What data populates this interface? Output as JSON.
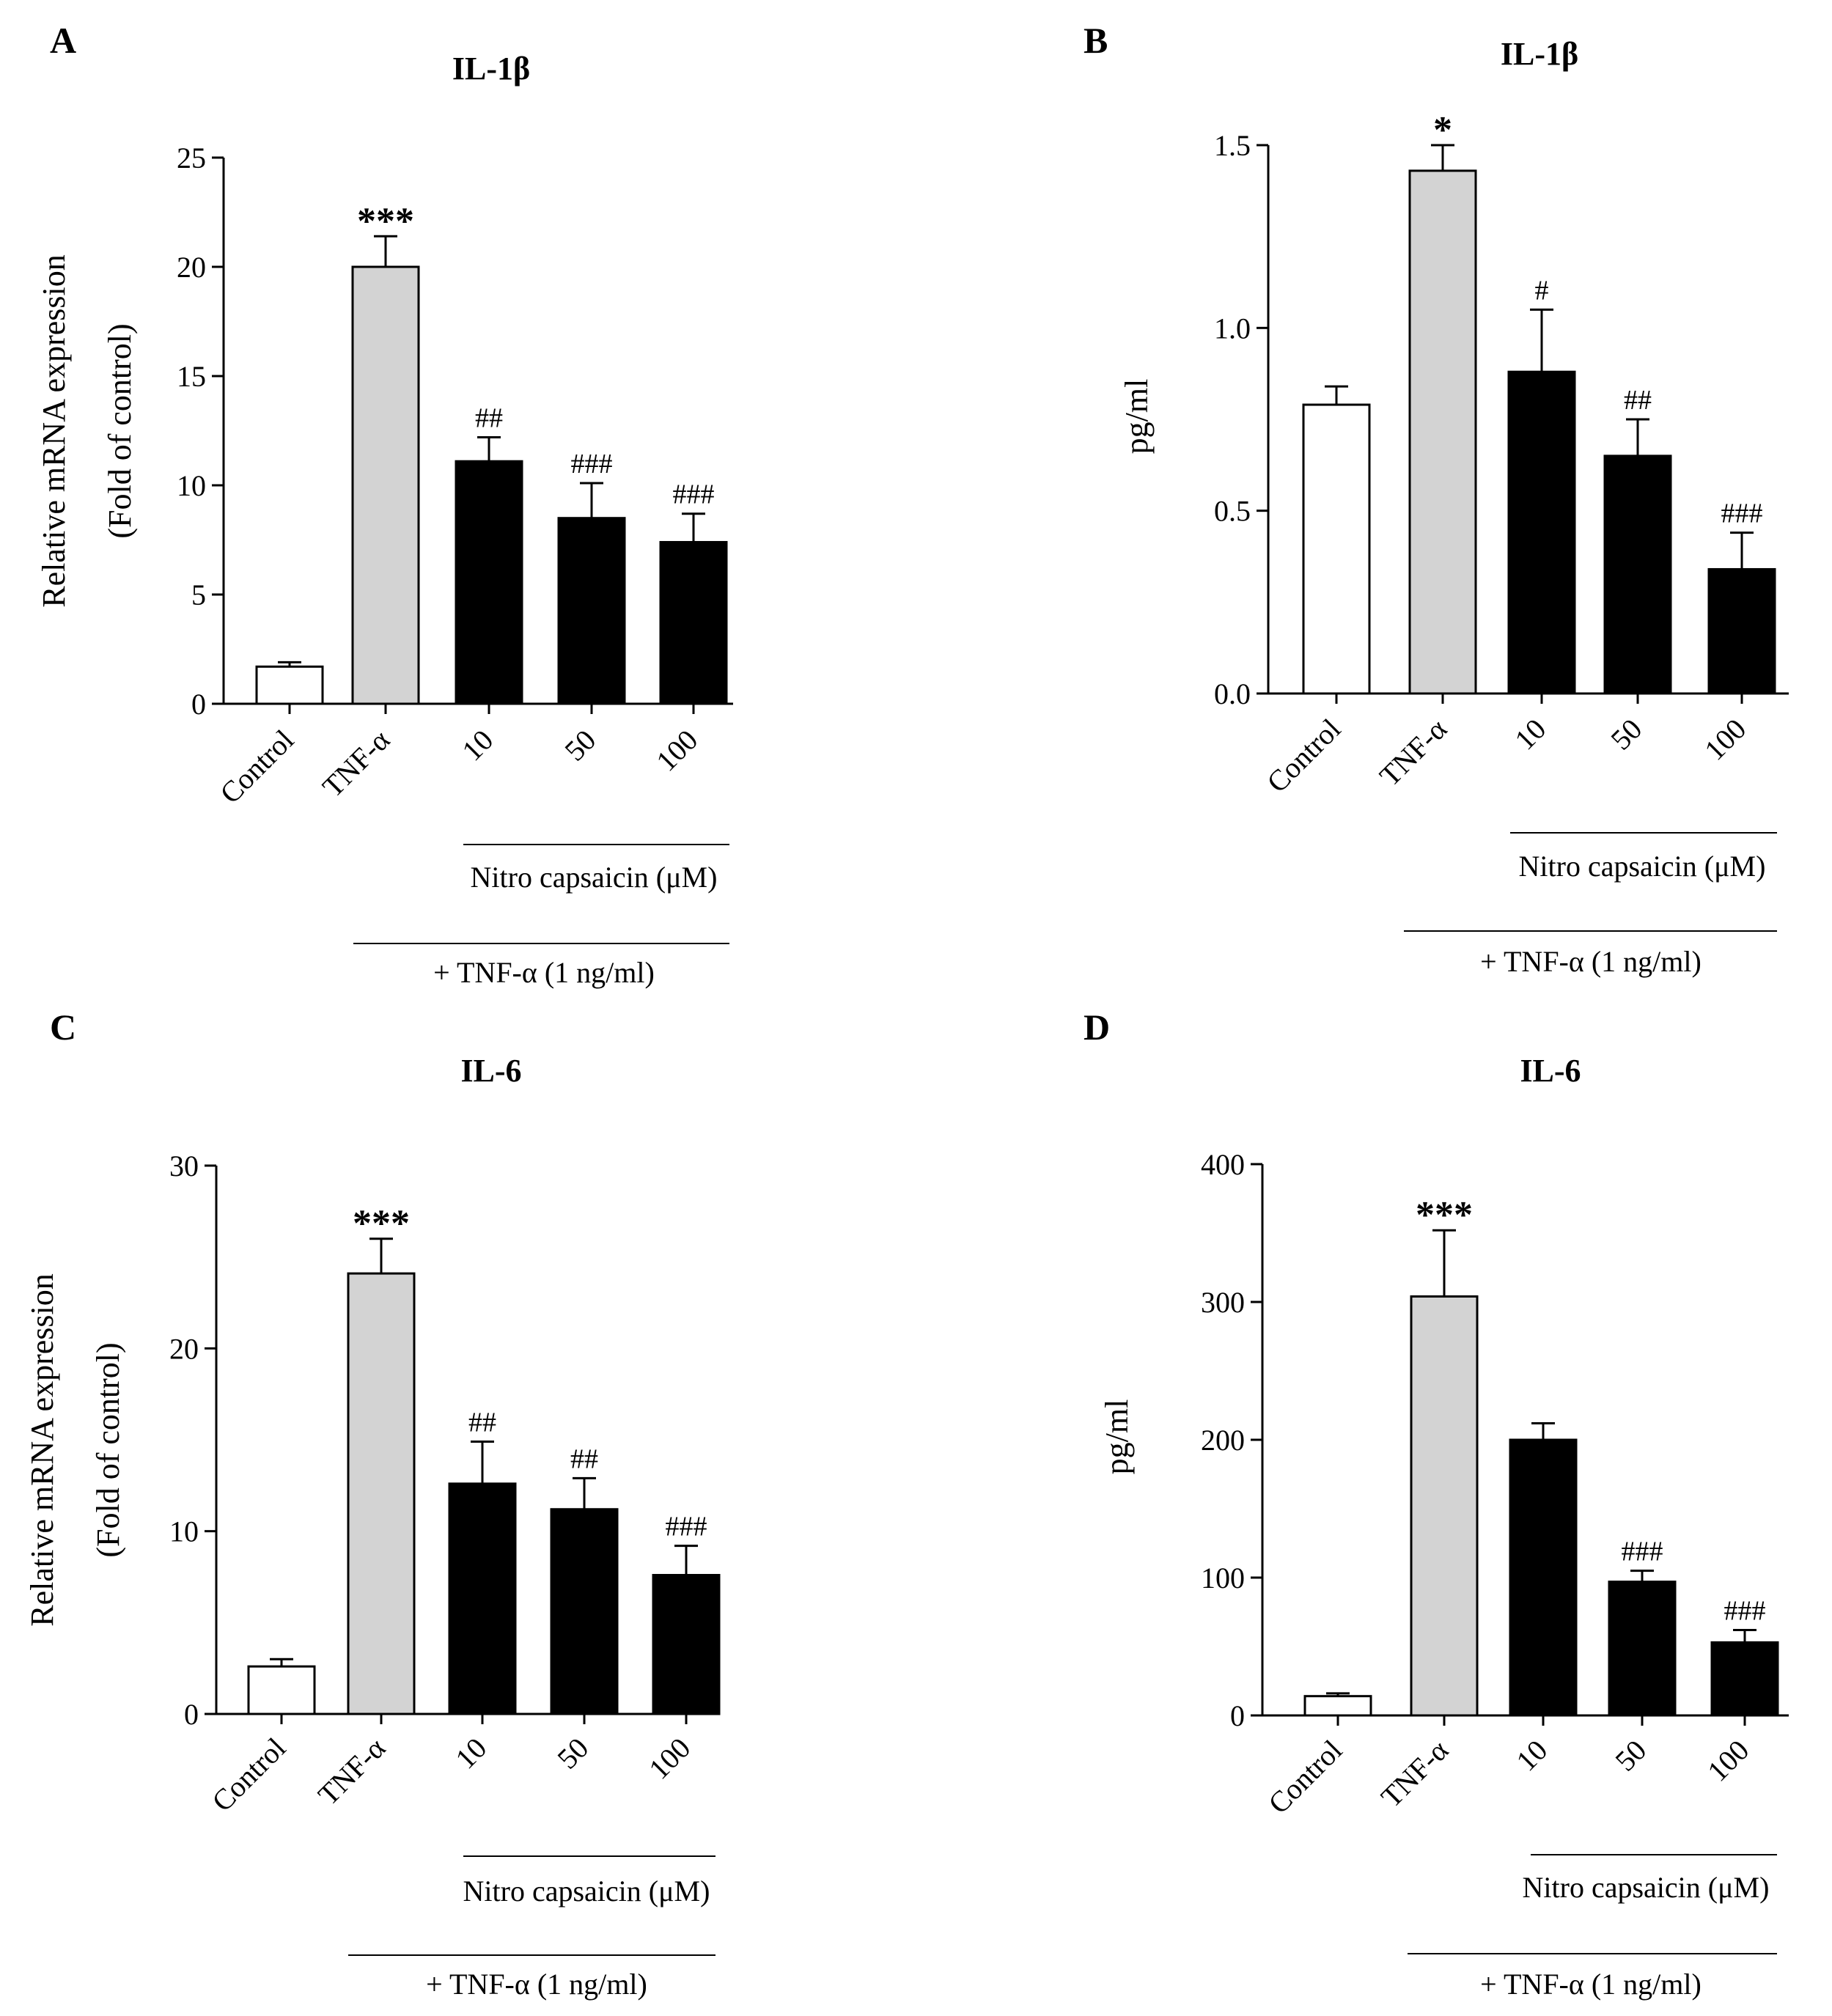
{
  "chart_data": [
    {
      "panel": "A",
      "type": "bar",
      "title": "IL-1β",
      "ylabel": [
        "Relative mRNA expression",
        "(Fold of control)"
      ],
      "ylim": [
        0,
        25
      ],
      "yticks": [
        0,
        5,
        10,
        15,
        20,
        25
      ],
      "ytick_labels": [
        "0",
        "5",
        "10",
        "15",
        "20",
        "25"
      ],
      "categories": [
        "Control",
        "TNF-α",
        "10",
        "50",
        "100"
      ],
      "values": [
        1.7,
        20.0,
        11.1,
        8.5,
        7.4
      ],
      "errors": [
        0.2,
        1.4,
        1.1,
        1.6,
        1.3
      ],
      "fills": [
        "#ffffff",
        "#d3d3d3",
        "#000000",
        "#000000",
        "#000000"
      ],
      "significance": [
        "",
        "***",
        "##",
        "###",
        "###"
      ],
      "group_label": "Nitro capsaicin (μM)",
      "treatment_label": "+ TNF-α (1 ng/ml)"
    },
    {
      "panel": "B",
      "type": "bar",
      "title": "IL-1β",
      "ylabel": [
        "pg/ml"
      ],
      "ylim": [
        0,
        1.5
      ],
      "yticks": [
        0,
        0.5,
        1.0,
        1.5
      ],
      "ytick_labels": [
        "0.0",
        "0.5",
        "1.0",
        "1.5"
      ],
      "categories": [
        "Control",
        "TNF-α",
        "10",
        "50",
        "100"
      ],
      "values": [
        0.79,
        1.43,
        0.88,
        0.65,
        0.34
      ],
      "errors": [
        0.05,
        0.07,
        0.17,
        0.1,
        0.1
      ],
      "fills": [
        "#ffffff",
        "#d3d3d3",
        "#000000",
        "#000000",
        "#000000"
      ],
      "significance": [
        "",
        "*",
        "#",
        "##",
        "###"
      ],
      "group_label": "Nitro capsaicin (μM)",
      "treatment_label": "+ TNF-α (1 ng/ml)"
    },
    {
      "panel": "C",
      "type": "bar",
      "title": "IL-6",
      "ylabel": [
        "Relative mRNA expression",
        "(Fold of control)"
      ],
      "ylim": [
        0,
        30
      ],
      "yticks": [
        0,
        10,
        20,
        30
      ],
      "ytick_labels": [
        "0",
        "10",
        "20",
        "30"
      ],
      "categories": [
        "Control",
        "TNF-α",
        "10",
        "50",
        "100"
      ],
      "values": [
        2.6,
        24.1,
        12.6,
        11.2,
        7.6
      ],
      "errors": [
        0.4,
        1.9,
        2.3,
        1.7,
        1.6
      ],
      "fills": [
        "#ffffff",
        "#d3d3d3",
        "#000000",
        "#000000",
        "#000000"
      ],
      "significance": [
        "",
        "***",
        "##",
        "##",
        "###"
      ],
      "group_label": "Nitro capsaicin (μM)",
      "treatment_label": "+ TNF-α (1 ng/ml)"
    },
    {
      "panel": "D",
      "type": "bar",
      "title": "IL-6",
      "ylabel": [
        "pg/ml"
      ],
      "ylim": [
        0,
        400
      ],
      "yticks": [
        0,
        100,
        200,
        300,
        400
      ],
      "ytick_labels": [
        "0",
        "100",
        "200",
        "300",
        "400"
      ],
      "categories": [
        "Control",
        "TNF-α",
        "10",
        "50",
        "100"
      ],
      "values": [
        14,
        304,
        200,
        97,
        53
      ],
      "errors": [
        2,
        48,
        12,
        8,
        9
      ],
      "fills": [
        "#ffffff",
        "#d3d3d3",
        "#000000",
        "#000000",
        "#000000"
      ],
      "significance": [
        "",
        "***",
        "",
        "###",
        "###"
      ],
      "group_label": "Nitro capsaicin (μM)",
      "treatment_label": "+ TNF-α (1 ng/ml)"
    }
  ]
}
